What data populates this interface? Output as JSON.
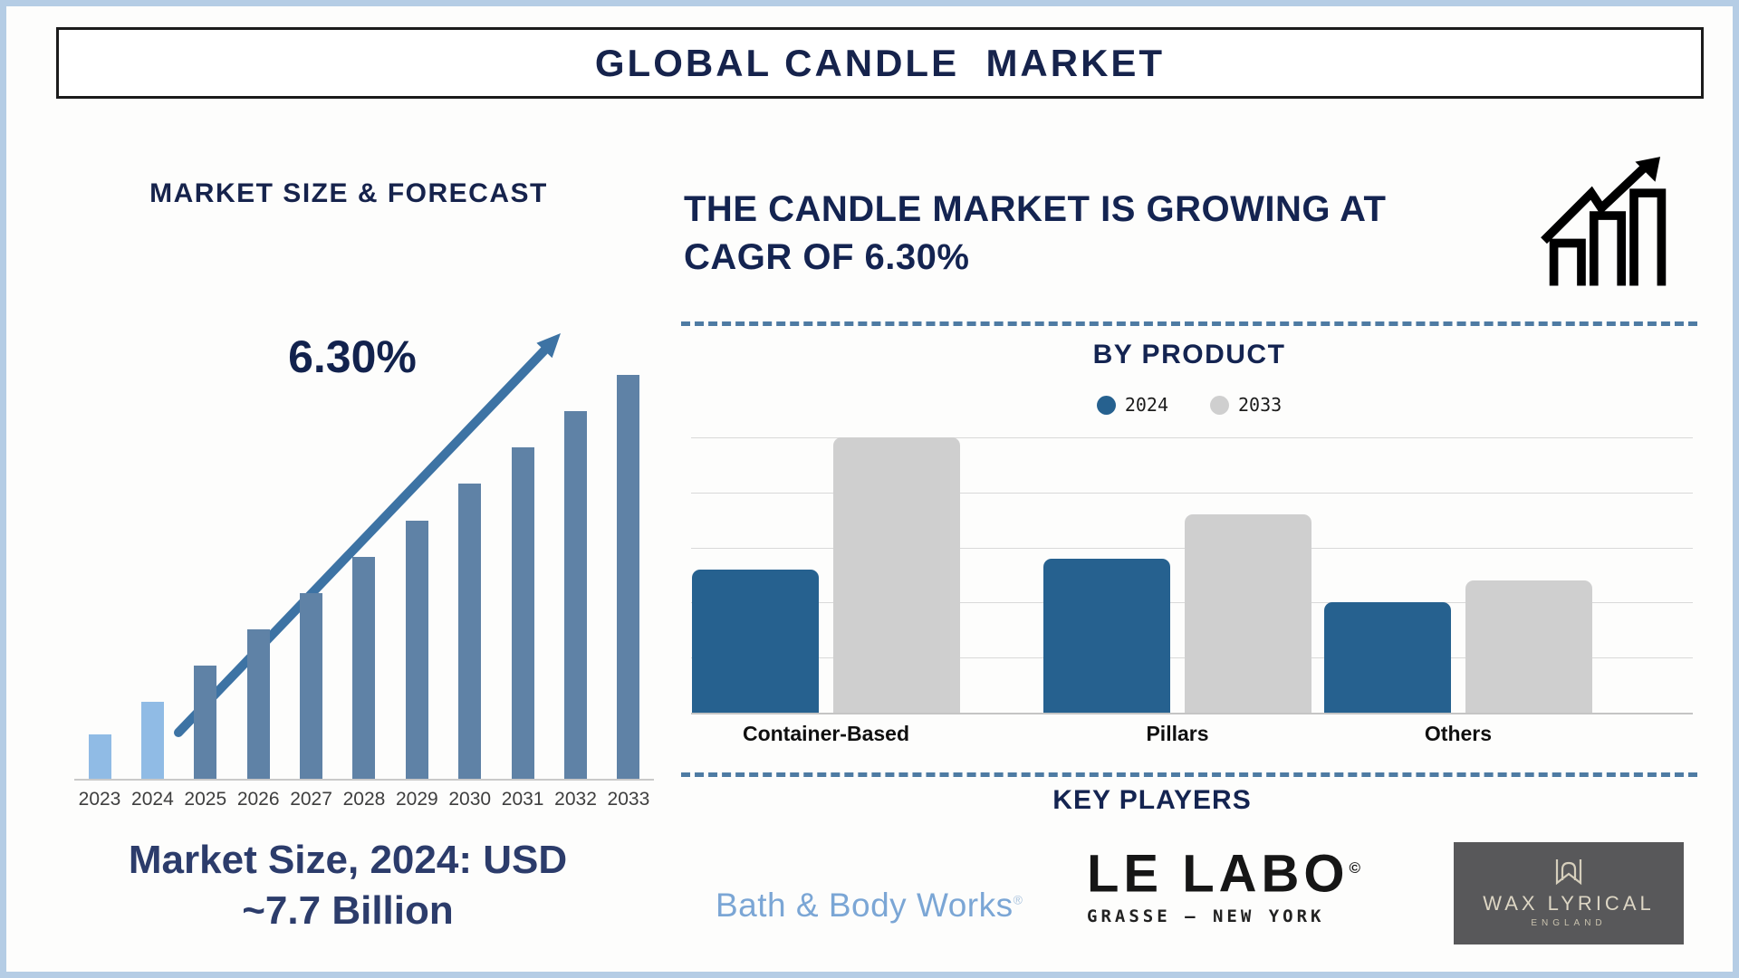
{
  "page": {
    "title": "GLOBAL CANDLE  MARKET"
  },
  "left_panel": {
    "heading": "MARKET SIZE & FORECAST",
    "cagr_label": "6.30%",
    "caption_line1": "Market Size, 2024: USD",
    "caption_line2": "~7.7 Billion"
  },
  "right_panel": {
    "headline_line1": "THE CANDLE MARKET IS GROWING AT",
    "headline_line2": "CAGR OF 6.30%"
  },
  "by_product": {
    "heading": "BY PRODUCT"
  },
  "key_players": {
    "heading": "KEY PLAYERS",
    "players": [
      {
        "name": "Bath & Body Works",
        "mark": "®"
      },
      {
        "name": "LE LABO",
        "mark": "©",
        "subline": "GRASSE — NEW YORK"
      },
      {
        "name": "WAX LYRICAL",
        "subline": "ENGLAND"
      }
    ]
  },
  "icons": {
    "growth_chart": "growth-chart-icon (three ascending hollow bars with zigzag up arrow)",
    "trend_arrow": "trend-arrow-icon (diagonal up-right arrow over bars)",
    "wax_monogram": "w-monogram-icon (letter W banner line-art)"
  },
  "colors": {
    "navy_text": "#16234c",
    "caption_navy": "#2c3c6b",
    "frame_border": "#b5cde5",
    "dashed_divider": "#4e7ba3",
    "forecast_bar_light": "#90bbe5",
    "forecast_bar_steel": "#5f82a6",
    "trend_arrow": "#3d73a4",
    "byproduct_2024": "#26618f",
    "byproduct_2033": "#cfcfcf",
    "bbw_blue": "#7ba6d5",
    "wax_box_bg": "#58585a",
    "wax_text": "#ddd6c4"
  },
  "chart_data": [
    {
      "id": "market_size_forecast",
      "type": "bar",
      "title": "MARKET SIZE & FORECAST",
      "categories": [
        "2023",
        "2024",
        "2025",
        "2026",
        "2027",
        "2028",
        "2029",
        "2030",
        "2031",
        "2032",
        "2033"
      ],
      "values": [
        11,
        19,
        28,
        37,
        46,
        55,
        64,
        73,
        82,
        91,
        100
      ],
      "value_unit": "relative bar height, % of 2033 bar (no numeric axis shown)",
      "annotation": "6.30%",
      "caption": "Market Size, 2024: USD ~7.7 Billion",
      "bar_colors": {
        "2023": "#90bbe5",
        "2024": "#90bbe5",
        "default": "#5f82a6"
      },
      "xlabel": "",
      "ylabel": "",
      "grid": false,
      "legend": false
    },
    {
      "id": "by_product",
      "type": "bar",
      "title": "BY PRODUCT",
      "categories": [
        "Container-Based",
        "Pillars",
        "Others"
      ],
      "series": [
        {
          "name": "2024",
          "color": "#26618f",
          "values": [
            52,
            56,
            40
          ]
        },
        {
          "name": "2033",
          "color": "#cfcfcf",
          "values": [
            100,
            72,
            48
          ]
        }
      ],
      "value_unit": "relative bar height, % of tallest bar (no numeric axis shown)",
      "grid": true,
      "gridline_count": 6,
      "legend_position": "top",
      "xlabel": "",
      "ylabel": ""
    }
  ]
}
